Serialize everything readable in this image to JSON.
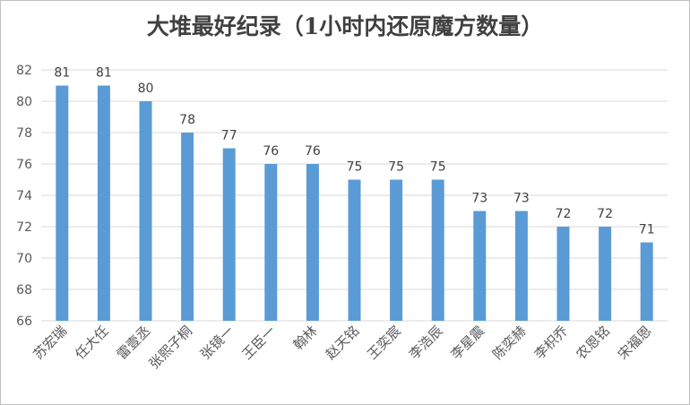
{
  "chart_data": {
    "type": "bar",
    "title": "大堆最好纪录（1小时内还原魔方数量）",
    "xlabel": "",
    "ylabel": "",
    "categories": [
      "苏宏瑞",
      "任大任",
      "雷壹丞",
      "张熙子桐",
      "张镜一",
      "王臣一",
      "翰林",
      "赵天铭",
      "王奕宸",
      "李浩辰",
      "李星震",
      "陈奕赫",
      "李枳乔",
      "农恩铭",
      "宋福恩"
    ],
    "values": [
      81,
      81,
      80,
      78,
      77,
      76,
      76,
      75,
      75,
      75,
      73,
      73,
      72,
      72,
      71
    ],
    "ylim": [
      66,
      82
    ],
    "yticks": [
      66,
      68,
      70,
      72,
      74,
      76,
      78,
      80,
      82
    ],
    "grid": true,
    "legend": "none",
    "bar_color": "#5b9bd5",
    "grid_color": "#d9d9d9"
  }
}
